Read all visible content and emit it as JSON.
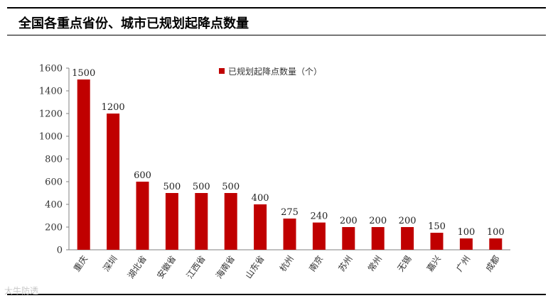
{
  "header": {
    "title": "全国各重点省份、城市已规划起降点数量"
  },
  "watermark": "大牛防透",
  "chart_data": {
    "type": "bar",
    "categories": [
      "重庆",
      "深圳",
      "湖北省",
      "安徽省",
      "江西省",
      "海南省",
      "山东省",
      "杭州",
      "南京",
      "苏州",
      "常州",
      "无锡",
      "嘉兴",
      "广州",
      "成都"
    ],
    "series": [
      {
        "name": "已规划起降点数量（个）",
        "values": [
          1500,
          1200,
          600,
          500,
          500,
          500,
          400,
          275,
          240,
          200,
          200,
          200,
          150,
          100,
          100
        ]
      }
    ],
    "ylim": [
      0,
      1600
    ],
    "yticks": [
      0,
      200,
      400,
      600,
      800,
      1000,
      1200,
      1400,
      1600
    ],
    "legend_position": "top",
    "grid": false,
    "bar_color": "#c00000"
  }
}
